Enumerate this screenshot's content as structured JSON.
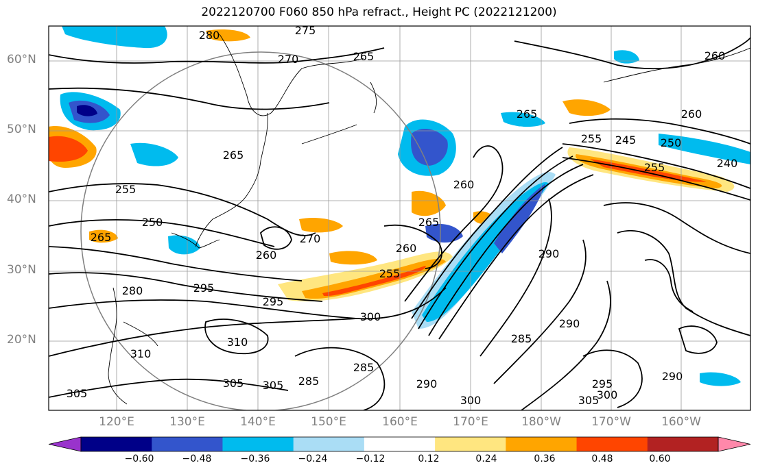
{
  "title": "2022120700 F060 850 hPa refract., Height PC (2022121200)",
  "lat_labels": [
    "60°N",
    "50°N",
    "40°N",
    "30°N",
    "20°N"
  ],
  "lon_labels": [
    "120°E",
    "130°E",
    "140°E",
    "150°E",
    "160°E",
    "170°E",
    "180°W",
    "170°W",
    "160°W"
  ],
  "colorbar": {
    "ticks": [
      "−0.60",
      "−0.48",
      "−0.36",
      "−0.24",
      "−0.12",
      "0.12",
      "0.24",
      "0.36",
      "0.48",
      "0.60"
    ],
    "colors": [
      "#9933cc",
      "#000088",
      "#3355cc",
      "#00bbee",
      "#aaddf5",
      "#ffffff",
      "#ffe680",
      "#ffa500",
      "#ff4500",
      "#b22222",
      "#ff88aa"
    ]
  },
  "contour_labels": [
    "280",
    "275",
    "270",
    "265",
    "260",
    "255",
    "250",
    "245",
    "240",
    "285",
    "290",
    "295",
    "300",
    "305",
    "310"
  ],
  "colors": {
    "axis_text": "#808080",
    "contour": "#000000",
    "grid": "#999999"
  }
}
